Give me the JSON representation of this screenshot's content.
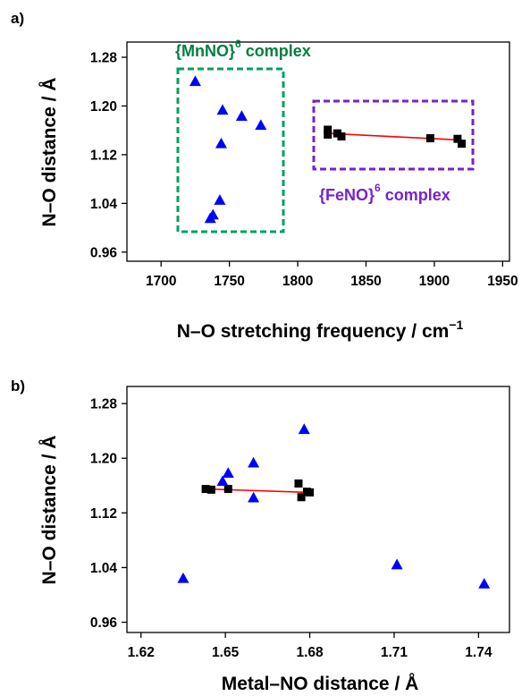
{
  "chart_data": [
    {
      "panel": "a)",
      "type": "scatter",
      "xlabel": "N–O stretching frequency / cm",
      "xlabel_sup": "−1",
      "ylabel": "N–O distance / Å",
      "xlim": [
        1675,
        1955
      ],
      "ylim": [
        0.945,
        1.305
      ],
      "xticks": [
        "1700",
        "1750",
        "1800",
        "1850",
        "1900",
        "1950"
      ],
      "yticks": [
        "0.96",
        "1.04",
        "1.12",
        "1.20",
        "1.28"
      ],
      "grid": false,
      "series": [
        {
          "marker": "triangle",
          "color": "#0000ff",
          "x": [
            1725,
            1745,
            1759,
            1773,
            1744,
            1743,
            1738,
            1736
          ],
          "y": [
            1.24,
            1.193,
            1.183,
            1.168,
            1.138,
            1.045,
            1.021,
            1.015
          ]
        },
        {
          "marker": "square",
          "color": "#000000",
          "x": [
            1822,
            1822,
            1829,
            1832,
            1897,
            1917,
            1920
          ],
          "y": [
            1.161,
            1.153,
            1.155,
            1.15,
            1.147,
            1.146,
            1.138
          ],
          "fit": {
            "x": [
              1822,
              1920
            ],
            "y": [
              1.155,
              1.144
            ],
            "color": "#ff0000"
          }
        }
      ],
      "annotations": [
        {
          "text": "{MnNO}",
          "sup": "6",
          "suffix": " complex",
          "color": "#008040",
          "box_color": "#00a060"
        },
        {
          "text": "{FeNO}",
          "sup": "6",
          "suffix": " complex",
          "color": "#7722cc",
          "box_color": "#7722cc"
        }
      ]
    },
    {
      "panel": "b)",
      "type": "scatter",
      "xlabel": "Metal–NO distance / Å",
      "ylabel": "N–O distance / Å",
      "xlim": [
        1.615,
        1.751
      ],
      "ylim": [
        0.945,
        1.305
      ],
      "xticks": [
        "1.62",
        "1.65",
        "1.68",
        "1.71",
        "1.74"
      ],
      "yticks": [
        "0.96",
        "1.04",
        "1.12",
        "1.20",
        "1.28"
      ],
      "grid": false,
      "series": [
        {
          "marker": "triangle",
          "color": "#0000ff",
          "x": [
            1.635,
            1.649,
            1.651,
            1.66,
            1.66,
            1.678,
            1.711,
            1.742
          ],
          "y": [
            1.024,
            1.166,
            1.178,
            1.193,
            1.142,
            1.242,
            1.044,
            1.016
          ]
        },
        {
          "marker": "square",
          "color": "#000000",
          "x": [
            1.643,
            1.645,
            1.651,
            1.676,
            1.677,
            1.679,
            1.68
          ],
          "y": [
            1.155,
            1.154,
            1.155,
            1.163,
            1.143,
            1.151,
            1.15
          ],
          "fit": {
            "x": [
              1.643,
              1.68
            ],
            "y": [
              1.155,
              1.15
            ],
            "color": "#ff0000"
          }
        }
      ]
    }
  ]
}
